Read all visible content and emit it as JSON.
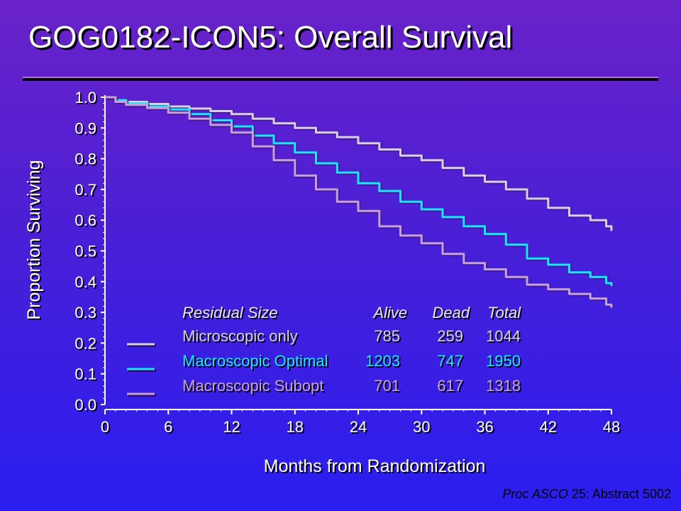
{
  "slide": {
    "title": "GOG0182-ICON5:  Overall Survival",
    "citation": {
      "journal": "Proc ASCO",
      "volume": "25",
      "rest": ": Abstract 5002"
    }
  },
  "colors": {
    "background_top": "#6a22c8",
    "background_bottom": "#2a1ef0",
    "microscopic": "#d8d0dc",
    "optimal": "#19e6ff",
    "subopt": "#c8a0d8",
    "axis": "#ffffff",
    "legend_header": "#e8e4ff"
  },
  "chart_data": {
    "type": "line",
    "title": "GOG0182-ICON5:  Overall Survival",
    "xlabel": "Months from Randomization",
    "ylabel": "Proportion Surviving",
    "xlim": [
      0,
      48
    ],
    "ylim": [
      0,
      1
    ],
    "xticks": [
      "0",
      "6",
      "12",
      "18",
      "24",
      "30",
      "36",
      "42",
      "48"
    ],
    "yticks": [
      "0.0",
      "0.1",
      "0.2",
      "0.3",
      "0.4",
      "0.5",
      "0.6",
      "0.7",
      "0.8",
      "0.9",
      "1.0"
    ],
    "grid": false,
    "legend_position": "bottom-center",
    "legend_header": [
      "Residual Size",
      "Alive",
      "Dead",
      "Total"
    ],
    "series": [
      {
        "name": "Microscopic only",
        "color": "#d8d0dc",
        "alive": "785",
        "dead": "259",
        "total": "1044",
        "x": [
          0,
          1,
          2,
          4,
          6,
          8,
          10,
          12,
          14,
          16,
          18,
          20,
          22,
          24,
          26,
          28,
          30,
          32,
          34,
          36,
          38,
          40,
          42,
          44,
          46,
          47.5,
          48
        ],
        "y": [
          1.0,
          0.99,
          0.985,
          0.978,
          0.97,
          0.963,
          0.955,
          0.945,
          0.93,
          0.915,
          0.9,
          0.885,
          0.87,
          0.85,
          0.83,
          0.81,
          0.795,
          0.77,
          0.745,
          0.725,
          0.7,
          0.67,
          0.64,
          0.615,
          0.6,
          0.58,
          0.565
        ]
      },
      {
        "name": "Macroscopic Optimal",
        "color": "#19e6ff",
        "alive": "1203",
        "dead": "747",
        "total": "1950",
        "x": [
          0,
          1,
          2,
          4,
          6,
          8,
          10,
          12,
          14,
          16,
          18,
          20,
          22,
          24,
          26,
          28,
          30,
          32,
          34,
          36,
          38,
          40,
          42,
          44,
          46,
          47.5,
          48
        ],
        "y": [
          1.0,
          0.99,
          0.98,
          0.97,
          0.96,
          0.945,
          0.925,
          0.905,
          0.875,
          0.85,
          0.82,
          0.785,
          0.755,
          0.72,
          0.695,
          0.66,
          0.635,
          0.61,
          0.58,
          0.555,
          0.52,
          0.475,
          0.455,
          0.43,
          0.415,
          0.395,
          0.385
        ]
      },
      {
        "name": "Macroscopic Subopt",
        "color": "#c8a0d8",
        "alive": "701",
        "dead": "617",
        "total": "1318",
        "x": [
          0,
          1,
          2,
          4,
          6,
          8,
          10,
          12,
          14,
          16,
          18,
          20,
          22,
          24,
          26,
          28,
          30,
          32,
          34,
          36,
          38,
          40,
          42,
          44,
          46,
          47.5,
          48
        ],
        "y": [
          1.0,
          0.985,
          0.975,
          0.965,
          0.95,
          0.93,
          0.91,
          0.885,
          0.84,
          0.795,
          0.745,
          0.7,
          0.66,
          0.63,
          0.58,
          0.55,
          0.525,
          0.49,
          0.46,
          0.44,
          0.415,
          0.39,
          0.375,
          0.36,
          0.345,
          0.325,
          0.315
        ]
      }
    ]
  }
}
